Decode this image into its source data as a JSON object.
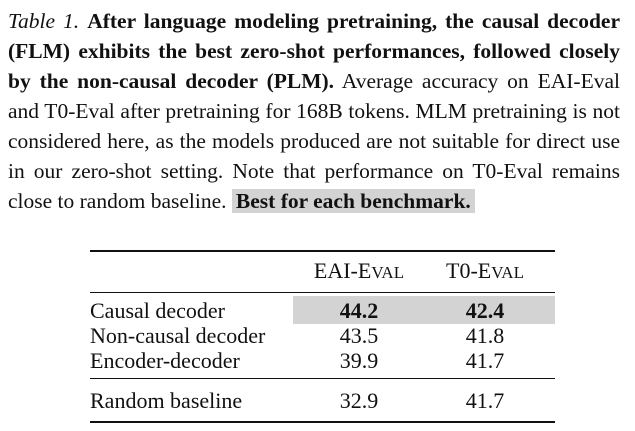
{
  "caption": {
    "label": "Table 1.",
    "bold_text": "After language modeling pretraining, the causal decoder (FLM) exhibits the best zero-shot performances, followed closely by the non-causal decoder (PLM).",
    "body_text": "Average accuracy on EAI-Eval and T0-Eval after pretraining for 168B tokens. MLM pretraining is not considered here, as the models produced are not suitable for direct use in our zero-shot setting. Note that performance on T0-Eval remains close to random baseline.",
    "highlight_text": "Best for each benchmark."
  },
  "table": {
    "columns": [
      {
        "prefix": "EAI-E",
        "smallcaps": "VAL"
      },
      {
        "prefix": "T0-E",
        "smallcaps": "VAL"
      }
    ],
    "rows": [
      {
        "label": "Causal decoder",
        "values": [
          "44.2",
          "42.4"
        ]
      },
      {
        "label": "Non-causal decoder",
        "values": [
          "43.5",
          "41.8"
        ]
      },
      {
        "label": "Encoder-decoder",
        "values": [
          "39.9",
          "41.7"
        ]
      }
    ],
    "baseline": {
      "label": "Random baseline",
      "values": [
        "32.9",
        "41.7"
      ]
    }
  },
  "colors": {
    "highlight": "#d3d3d3",
    "text": "#111111"
  }
}
